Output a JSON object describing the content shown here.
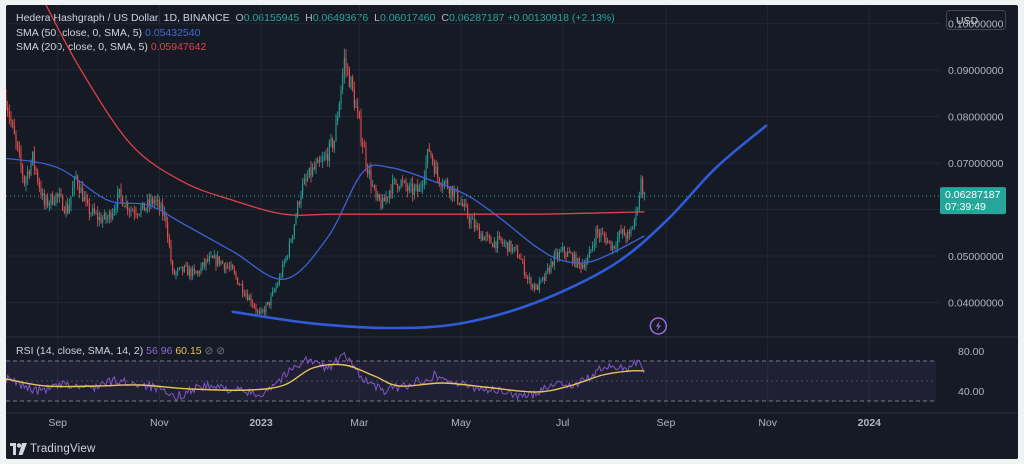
{
  "header": {
    "symbol": "Hedera Hashgraph / US Dollar, 1D, BINANCE",
    "open_label": "O",
    "open": "0.06155945",
    "high_label": "H",
    "high": "0.06493676",
    "low_label": "L",
    "low": "0.06017460",
    "close_label": "C",
    "close": "0.06287187",
    "change": "+0.00130918 (+2.13%)",
    "sma50_label": "SMA (50, close, 0, SMA, 5)",
    "sma50_value": "0.05432540",
    "sma200_label": "SMA (200, close, 0, SMA, 5)",
    "sma200_value": "0.05947642",
    "rsi_label": "RSI (14, close, SMA, 14, 2)",
    "rsi_value": "56.96",
    "rsi_ma_value": "60.15",
    "rsi_icons": "⊘ ⊘"
  },
  "currency_button": "USD",
  "price_tag": {
    "price": "0.06287187",
    "countdown": "07:39:49"
  },
  "brand": "TradingView",
  "colors": {
    "background": "#161a25",
    "up": "#26a69a",
    "down": "#ef5350",
    "sma50": "#3b62d6",
    "sma200": "#e0414a",
    "curve": "#2f5bd8",
    "rsi": "#7e57c2",
    "rsi_ma": "#e8c35a"
  },
  "chart_data": [
    {
      "type": "candlestick",
      "title": "Hedera Hashgraph / US Dollar, 1D, BINANCE",
      "y_scale": "linear",
      "ylim": [
        0.033,
        0.104
      ],
      "y_ticks": [
        "0.10000000",
        "0.09000000",
        "0.08000000",
        "0.07000000",
        "0.06000000",
        "0.05000000",
        "0.04000000"
      ],
      "y_tick_values": [
        0.1,
        0.09,
        0.08,
        0.07,
        0.06,
        0.05,
        0.04
      ],
      "x_labels": [
        "Sep",
        "Nov",
        "2023",
        "Mar",
        "May",
        "Jul",
        "Sep",
        "Nov",
        "2024"
      ],
      "x_range": [
        "2022-08-01",
        "2024-02-10"
      ],
      "x_label_dates": [
        "2022-09-01",
        "2022-11-01",
        "2023-01-01",
        "2023-03-01",
        "2023-05-01",
        "2023-07-01",
        "2023-09-01",
        "2023-11-01",
        "2024-01-01"
      ],
      "last_bar_date": "2023-08-19",
      "price_path": [
        [
          "2022-08-01",
          0.084
        ],
        [
          "2022-08-05",
          0.077
        ],
        [
          "2022-08-12",
          0.066
        ],
        [
          "2022-08-17",
          0.071
        ],
        [
          "2022-08-24",
          0.061
        ],
        [
          "2022-08-31",
          0.063
        ],
        [
          "2022-09-07",
          0.06
        ],
        [
          "2022-09-12",
          0.067
        ],
        [
          "2022-09-19",
          0.06
        ],
        [
          "2022-09-26",
          0.058
        ],
        [
          "2022-10-01",
          0.058
        ],
        [
          "2022-10-08",
          0.063
        ],
        [
          "2022-10-15",
          0.06
        ],
        [
          "2022-10-22",
          0.06
        ],
        [
          "2022-10-29",
          0.062
        ],
        [
          "2022-11-05",
          0.058
        ],
        [
          "2022-11-09",
          0.046
        ],
        [
          "2022-11-16",
          0.047
        ],
        [
          "2022-11-23",
          0.046
        ],
        [
          "2022-11-30",
          0.049
        ],
        [
          "2022-12-07",
          0.049
        ],
        [
          "2022-12-14",
          0.047
        ],
        [
          "2022-12-21",
          0.043
        ],
        [
          "2022-12-27",
          0.04
        ],
        [
          "2022-12-31",
          0.037
        ],
        [
          "2023-01-06",
          0.04
        ],
        [
          "2023-01-12",
          0.045
        ],
        [
          "2023-01-18",
          0.052
        ],
        [
          "2023-01-25",
          0.064
        ],
        [
          "2023-01-31",
          0.068
        ],
        [
          "2023-02-07",
          0.07
        ],
        [
          "2023-02-14",
          0.075
        ],
        [
          "2023-02-20",
          0.092
        ],
        [
          "2023-02-24",
          0.087
        ],
        [
          "2023-03-01",
          0.078
        ],
        [
          "2023-03-06",
          0.069
        ],
        [
          "2023-03-11",
          0.062
        ],
        [
          "2023-03-15",
          0.061
        ],
        [
          "2023-03-20",
          0.065
        ],
        [
          "2023-03-25",
          0.066
        ],
        [
          "2023-03-31",
          0.064
        ],
        [
          "2023-04-06",
          0.064
        ],
        [
          "2023-04-12",
          0.073
        ],
        [
          "2023-04-17",
          0.067
        ],
        [
          "2023-04-24",
          0.065
        ],
        [
          "2023-04-30",
          0.062
        ],
        [
          "2023-05-06",
          0.058
        ],
        [
          "2023-05-12",
          0.055
        ],
        [
          "2023-05-18",
          0.053
        ],
        [
          "2023-05-24",
          0.053
        ],
        [
          "2023-05-30",
          0.052
        ],
        [
          "2023-06-05",
          0.05
        ],
        [
          "2023-06-10",
          0.045
        ],
        [
          "2023-06-15",
          0.043
        ],
        [
          "2023-06-20",
          0.045
        ],
        [
          "2023-06-25",
          0.049
        ],
        [
          "2023-07-01",
          0.051
        ],
        [
          "2023-07-06",
          0.05
        ],
        [
          "2023-07-11",
          0.048
        ],
        [
          "2023-07-16",
          0.049
        ],
        [
          "2023-07-21",
          0.055
        ],
        [
          "2023-07-26",
          0.054
        ],
        [
          "2023-07-31",
          0.052
        ],
        [
          "2023-08-05",
          0.055
        ],
        [
          "2023-08-10",
          0.054
        ],
        [
          "2023-08-14",
          0.059
        ],
        [
          "2023-08-17",
          0.066
        ],
        [
          "2023-08-19",
          0.06287
        ]
      ],
      "series": [
        {
          "name": "SMA (50, close, 0, SMA, 5)",
          "points": [
            [
              "2022-08-01",
              0.071
            ],
            [
              "2022-09-01",
              0.069
            ],
            [
              "2022-10-01",
              0.062
            ],
            [
              "2022-10-25",
              0.061
            ],
            [
              "2022-11-15",
              0.057
            ],
            [
              "2022-12-15",
              0.051
            ],
            [
              "2023-01-15",
              0.045
            ],
            [
              "2023-02-10",
              0.054
            ],
            [
              "2023-03-03",
              0.068
            ],
            [
              "2023-03-20",
              0.069
            ],
            [
              "2023-04-15",
              0.066
            ],
            [
              "2023-05-05",
              0.063
            ],
            [
              "2023-05-25",
              0.058
            ],
            [
              "2023-06-15",
              0.052
            ],
            [
              "2023-07-01",
              0.049
            ],
            [
              "2023-07-20",
              0.049
            ],
            [
              "2023-08-19",
              0.0543
            ]
          ]
        },
        {
          "name": "SMA (200, close, 0, SMA, 5)",
          "points": [
            [
              "2022-08-25",
              0.104
            ],
            [
              "2022-09-15",
              0.09
            ],
            [
              "2022-10-15",
              0.074
            ],
            [
              "2022-11-15",
              0.066
            ],
            [
              "2022-12-15",
              0.062
            ],
            [
              "2023-01-15",
              0.059
            ],
            [
              "2023-02-15",
              0.059
            ],
            [
              "2023-04-15",
              0.059
            ],
            [
              "2023-06-15",
              0.059
            ],
            [
              "2023-08-19",
              0.0595
            ]
          ]
        }
      ],
      "annotations": [
        {
          "type": "trend_curve",
          "points": [
            [
              "2022-12-15",
              0.038
            ],
            [
              "2023-02-01",
              0.0355
            ],
            [
              "2023-03-20",
              0.0345
            ],
            [
              "2023-05-01",
              0.0355
            ],
            [
              "2023-06-15",
              0.04
            ],
            [
              "2023-07-31",
              0.048
            ],
            [
              "2023-09-01",
              0.0575
            ],
            [
              "2023-10-01",
              0.069
            ],
            [
              "2023-10-31",
              0.078
            ]
          ]
        }
      ],
      "last_price": "0.06287187",
      "grid": true
    },
    {
      "type": "line",
      "title": "RSI (14, close, SMA, 14, 2)",
      "ylim": [
        28,
        90
      ],
      "y_ticks": [
        "80.00",
        "40.00"
      ],
      "y_tick_values": [
        80,
        40
      ],
      "bands": [
        70,
        30
      ],
      "series": [
        {
          "name": "RSI",
          "points": [
            [
              "2022-08-01",
              52
            ],
            [
              "2022-08-20",
              40
            ],
            [
              "2022-09-05",
              46
            ],
            [
              "2022-09-20",
              43
            ],
            [
              "2022-10-05",
              50
            ],
            [
              "2022-10-25",
              46
            ],
            [
              "2022-11-10",
              33
            ],
            [
              "2022-11-25",
              45
            ],
            [
              "2022-12-10",
              43
            ],
            [
              "2022-12-31",
              36
            ],
            [
              "2023-01-15",
              55
            ],
            [
              "2023-01-27",
              72
            ],
            [
              "2023-02-10",
              63
            ],
            [
              "2023-02-20",
              75
            ],
            [
              "2023-03-05",
              50
            ],
            [
              "2023-03-15",
              40
            ],
            [
              "2023-04-01",
              47
            ],
            [
              "2023-04-15",
              56
            ],
            [
              "2023-05-01",
              46
            ],
            [
              "2023-05-20",
              41
            ],
            [
              "2023-06-10",
              34
            ],
            [
              "2023-06-25",
              48
            ],
            [
              "2023-07-10",
              46
            ],
            [
              "2023-07-25",
              63
            ],
            [
              "2023-08-10",
              64
            ],
            [
              "2023-08-16",
              73
            ],
            [
              "2023-08-19",
              56.96
            ]
          ]
        },
        {
          "name": "RSI-based MA",
          "points": [
            [
              "2022-08-01",
              52
            ],
            [
              "2022-08-25",
              45
            ],
            [
              "2022-09-25",
              45
            ],
            [
              "2022-10-20",
              46
            ],
            [
              "2022-11-20",
              42
            ],
            [
              "2022-12-25",
              41
            ],
            [
              "2023-01-15",
              46
            ],
            [
              "2023-02-01",
              63
            ],
            [
              "2023-02-20",
              66
            ],
            [
              "2023-03-10",
              55
            ],
            [
              "2023-03-25",
              45
            ],
            [
              "2023-04-20",
              48
            ],
            [
              "2023-05-15",
              44
            ],
            [
              "2023-06-15",
              39
            ],
            [
              "2023-07-05",
              45
            ],
            [
              "2023-07-25",
              56
            ],
            [
              "2023-08-10",
              60
            ],
            [
              "2023-08-19",
              60.15
            ]
          ]
        }
      ]
    }
  ]
}
